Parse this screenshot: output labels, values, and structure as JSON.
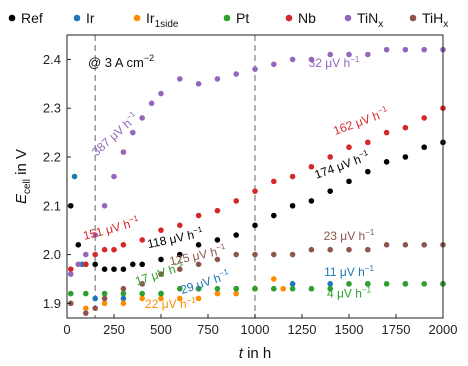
{
  "chart_data": {
    "type": "scatter",
    "xlabel_main": "t",
    "xlabel_rest": " in h",
    "ylabel_main": "E",
    "ylabel_sub": "cell",
    "ylabel_rest": " in V",
    "xlim": [
      0,
      2000
    ],
    "ylim": [
      1.87,
      2.45
    ],
    "xticks": [
      0,
      250,
      500,
      750,
      1000,
      1250,
      1500,
      1750,
      2000
    ],
    "yticks": [
      1.9,
      2.0,
      2.1,
      2.2,
      2.3,
      2.4
    ],
    "ytick_labels": [
      "1.9",
      "2.0",
      "2.1",
      "2.2",
      "2.3",
      "2.4"
    ],
    "grid": false,
    "legend_placement": "top",
    "condition_main": "@ 3 A cm",
    "condition_sup": "−2",
    "vlines": [
      150,
      1000
    ],
    "series": [
      {
        "key": "ref",
        "name": "Ref",
        "sub": "",
        "color": "#000000",
        "points": [
          [
            20,
            2.1
          ],
          [
            60,
            2.02
          ],
          [
            100,
            1.98
          ],
          [
            150,
            1.98
          ],
          [
            200,
            1.97
          ],
          [
            250,
            1.97
          ],
          [
            300,
            1.97
          ],
          [
            350,
            1.98
          ],
          [
            400,
            1.98
          ],
          [
            500,
            1.99
          ],
          [
            600,
            2.0
          ],
          [
            700,
            2.02
          ],
          [
            800,
            2.03
          ],
          [
            900,
            2.04
          ],
          [
            1000,
            2.06
          ],
          [
            1100,
            2.08
          ],
          [
            1200,
            2.1
          ],
          [
            1300,
            2.11
          ],
          [
            1400,
            2.13
          ],
          [
            1500,
            2.15
          ],
          [
            1600,
            2.17
          ],
          [
            1700,
            2.19
          ],
          [
            1800,
            2.2
          ],
          [
            1900,
            2.22
          ],
          [
            2000,
            2.23
          ]
        ]
      },
      {
        "key": "ir",
        "name": "Ir",
        "sub": "",
        "color": "#1f77b4",
        "points": [
          [
            40,
            2.16
          ],
          [
            80,
            1.98
          ],
          [
            150,
            1.91
          ],
          [
            300,
            1.91
          ],
          [
            500,
            1.92
          ],
          [
            700,
            1.93
          ],
          [
            900,
            1.93
          ],
          [
            1000,
            1.93
          ],
          [
            1200,
            1.94
          ],
          [
            1400,
            1.94
          ],
          [
            1600,
            1.94
          ],
          [
            1800,
            1.94
          ],
          [
            2000,
            1.94
          ]
        ]
      },
      {
        "key": "ir1side",
        "name": "Ir",
        "sub": "1side",
        "color": "#ff8c00",
        "points": [
          [
            100,
            1.89
          ],
          [
            200,
            1.9
          ],
          [
            300,
            1.9
          ],
          [
            400,
            1.91
          ],
          [
            500,
            1.91
          ],
          [
            600,
            1.91
          ],
          [
            700,
            1.91
          ],
          [
            800,
            1.92
          ],
          [
            900,
            1.92
          ],
          [
            1000,
            1.93
          ],
          [
            1100,
            1.95
          ],
          [
            1150,
            1.93
          ]
        ]
      },
      {
        "key": "pt",
        "name": "Pt",
        "sub": "",
        "color": "#2ca02c",
        "points": [
          [
            20,
            1.92
          ],
          [
            100,
            1.92
          ],
          [
            200,
            1.92
          ],
          [
            300,
            1.92
          ],
          [
            400,
            1.92
          ],
          [
            500,
            1.92
          ],
          [
            600,
            1.93
          ],
          [
            700,
            1.93
          ],
          [
            800,
            1.93
          ],
          [
            900,
            1.93
          ],
          [
            1000,
            1.93
          ],
          [
            1100,
            1.93
          ],
          [
            1200,
            1.93
          ],
          [
            1300,
            1.93
          ],
          [
            1400,
            1.93
          ],
          [
            1500,
            1.94
          ],
          [
            1600,
            1.94
          ],
          [
            1700,
            1.94
          ],
          [
            1800,
            1.94
          ],
          [
            1900,
            1.94
          ],
          [
            2000,
            1.94
          ]
        ]
      },
      {
        "key": "nb",
        "name": "Nb",
        "sub": "",
        "color": "#d62728",
        "points": [
          [
            20,
            1.97
          ],
          [
            100,
            1.98
          ],
          [
            150,
            2.0
          ],
          [
            200,
            2.01
          ],
          [
            250,
            2.01
          ],
          [
            300,
            2.02
          ],
          [
            400,
            2.03
          ],
          [
            500,
            2.05
          ],
          [
            600,
            2.06
          ],
          [
            700,
            2.08
          ],
          [
            800,
            2.09
          ],
          [
            900,
            2.11
          ],
          [
            1000,
            2.13
          ],
          [
            1100,
            2.15
          ],
          [
            1200,
            2.16
          ],
          [
            1300,
            2.18
          ],
          [
            1400,
            2.2
          ],
          [
            1500,
            2.22
          ],
          [
            1600,
            2.23
          ],
          [
            1700,
            2.25
          ],
          [
            1800,
            2.26
          ],
          [
            1900,
            2.28
          ],
          [
            2000,
            2.3
          ]
        ]
      },
      {
        "key": "tinx",
        "name": "TiN",
        "sub": "x",
        "color": "#9467bd",
        "points": [
          [
            20,
            1.96
          ],
          [
            60,
            1.98
          ],
          [
            100,
            2.0
          ],
          [
            150,
            2.04
          ],
          [
            200,
            2.1
          ],
          [
            250,
            2.16
          ],
          [
            300,
            2.21
          ],
          [
            350,
            2.25
          ],
          [
            400,
            2.28
          ],
          [
            450,
            2.31
          ],
          [
            500,
            2.33
          ],
          [
            600,
            2.36
          ],
          [
            700,
            2.35
          ],
          [
            800,
            2.36
          ],
          [
            900,
            2.37
          ],
          [
            1000,
            2.38
          ],
          [
            1100,
            2.39
          ],
          [
            1200,
            2.4
          ],
          [
            1300,
            2.4
          ],
          [
            1400,
            2.41
          ],
          [
            1500,
            2.41
          ],
          [
            1600,
            2.41
          ],
          [
            1700,
            2.42
          ],
          [
            1800,
            2.42
          ],
          [
            1900,
            2.42
          ],
          [
            2000,
            2.42
          ]
        ]
      },
      {
        "key": "tihx",
        "name": "TiH",
        "sub": "x",
        "color": "#8c564b",
        "points": [
          [
            20,
            1.9
          ],
          [
            100,
            1.88
          ],
          [
            150,
            1.89
          ],
          [
            200,
            1.91
          ],
          [
            300,
            1.93
          ],
          [
            400,
            1.94
          ],
          [
            500,
            1.96
          ],
          [
            600,
            1.97
          ],
          [
            700,
            1.98
          ],
          [
            800,
            1.99
          ],
          [
            900,
            2.0
          ],
          [
            1000,
            2.0
          ],
          [
            1100,
            2.0
          ],
          [
            1200,
            2.0
          ],
          [
            1300,
            2.01
          ],
          [
            1400,
            2.01
          ],
          [
            1500,
            2.01
          ],
          [
            1600,
            2.01
          ],
          [
            1700,
            2.02
          ],
          [
            1800,
            2.02
          ],
          [
            1900,
            2.02
          ],
          [
            2000,
            2.02
          ]
        ]
      }
    ],
    "annotations": [
      {
        "text": "387 μV h",
        "sup": "−1",
        "color": "#9467bd",
        "x": 270,
        "y": 2.24,
        "rotate": -42
      },
      {
        "text": "32 μV h",
        "sup": "−1",
        "color": "#9467bd",
        "x": 1420,
        "y": 2.384,
        "rotate": 0
      },
      {
        "text": "162 μV h",
        "sup": "−1",
        "color": "#d62728",
        "x": 1570,
        "y": 2.265,
        "rotate": -20
      },
      {
        "text": "174 μV h",
        "sup": "−1",
        "color": "#000000",
        "x": 1470,
        "y": 2.175,
        "rotate": -20
      },
      {
        "text": "151 μV h",
        "sup": "−1",
        "color": "#d62728",
        "x": 240,
        "y": 2.045,
        "rotate": -15
      },
      {
        "text": "118 μV h",
        "sup": "−1",
        "color": "#000000",
        "x": 580,
        "y": 2.025,
        "rotate": -12
      },
      {
        "text": "125 μV h",
        "sup": "−1",
        "color": "#8c564b",
        "x": 700,
        "y": 1.99,
        "rotate": -12
      },
      {
        "text": "23 μV h",
        "sup": "−1",
        "color": "#8c564b",
        "x": 1500,
        "y": 2.03,
        "rotate": 0
      },
      {
        "text": "17 μV h",
        "sup": "−1",
        "color": "#2ca02c",
        "x": 500,
        "y": 1.953,
        "rotate": -18
      },
      {
        "text": "29 μV h",
        "sup": "−1",
        "color": "#1f77b4",
        "x": 740,
        "y": 1.935,
        "rotate": -18
      },
      {
        "text": "11 μV h",
        "sup": "−1",
        "color": "#1f77b4",
        "x": 1500,
        "y": 1.956,
        "rotate": 0
      },
      {
        "text": "4 μV h",
        "sup": "−1",
        "color": "#2ca02c",
        "x": 1500,
        "y": 1.912,
        "rotate": 0
      },
      {
        "text": "22 μV h",
        "sup": "−1",
        "color": "#ff8c00",
        "x": 550,
        "y": 1.891,
        "rotate": 0
      }
    ]
  }
}
